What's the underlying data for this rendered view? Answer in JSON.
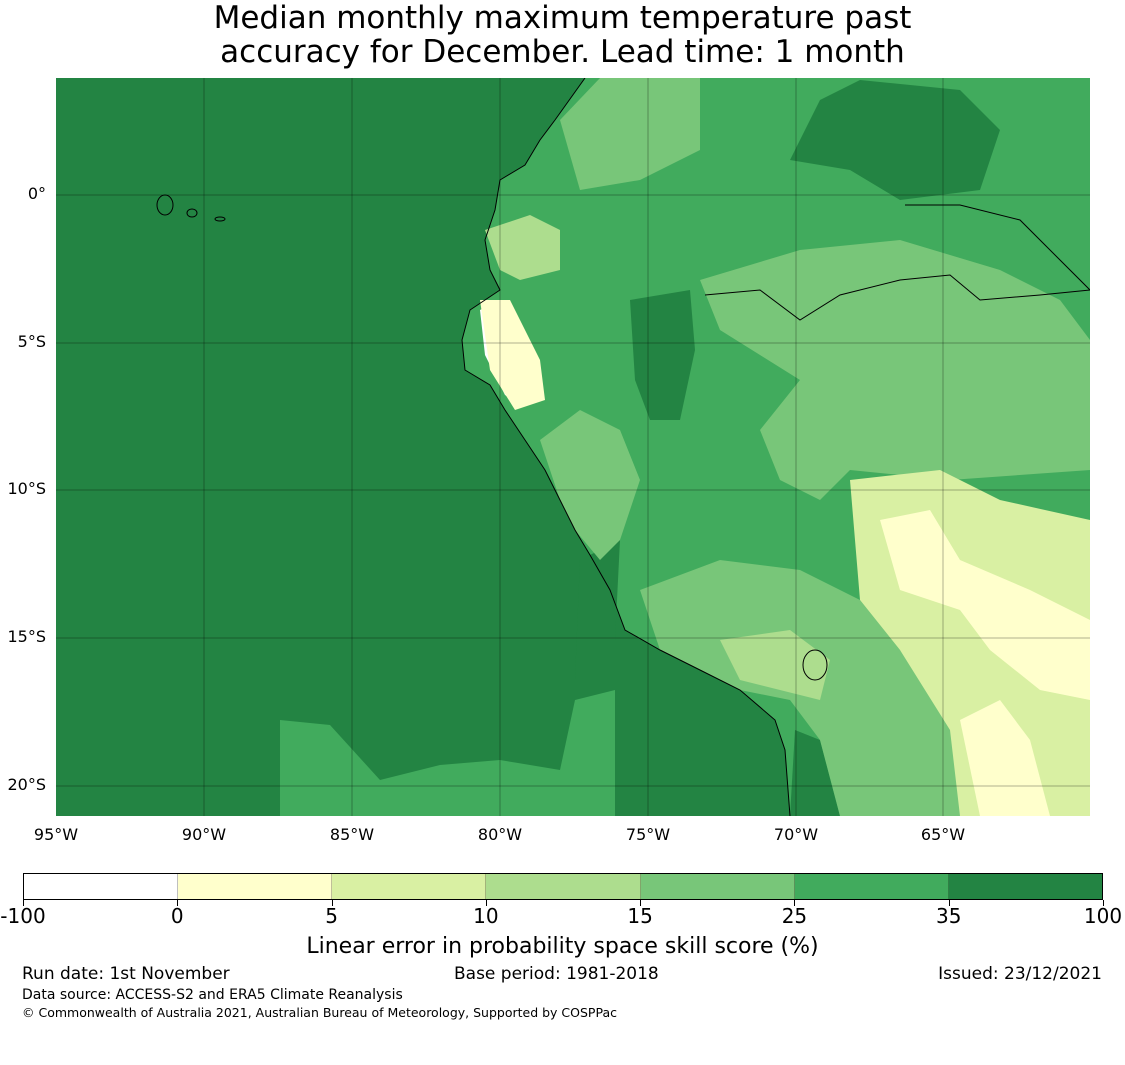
{
  "title": {
    "line1": "Median monthly maximum temperature past",
    "line2": "accuracy for December. Lead time: 1 month"
  },
  "map": {
    "lat_labels": [
      "0°",
      "5°S",
      "10°S",
      "15°S",
      "20°S"
    ],
    "lon_labels": [
      "95°W",
      "90°W",
      "85°W",
      "80°W",
      "75°W",
      "70°W",
      "65°W"
    ],
    "colors": {
      "ocean": "#238443",
      "c_m100_0": "#ffffff",
      "c_0_5": "#ffffcc",
      "c_5_10": "#d9f0a3",
      "c_10_15": "#addd8e",
      "c_15_25": "#78c679",
      "c_25_35": "#41ab5d",
      "c_35_100": "#238443"
    }
  },
  "colorbar": {
    "ticks": [
      "-100",
      "0",
      "5",
      "10",
      "15",
      "25",
      "35",
      "100"
    ],
    "colors": [
      "#ffffff",
      "#ffffcc",
      "#d9f0a3",
      "#addd8e",
      "#78c679",
      "#41ab5d",
      "#238443"
    ],
    "label": "Linear error in probability space skill score (%)"
  },
  "footer": {
    "run_date": "Run date: 1st November",
    "base_period": "Base period: 1981-2018",
    "issued": "Issued: 23/12/2021",
    "data_source": "Data source: ACCESS-S2 and ERA5 Climate Reanalysis",
    "copyright": "© Commonwealth of Australia 2021, Australian Bureau of Meteorology, Supported by COSPPac"
  }
}
